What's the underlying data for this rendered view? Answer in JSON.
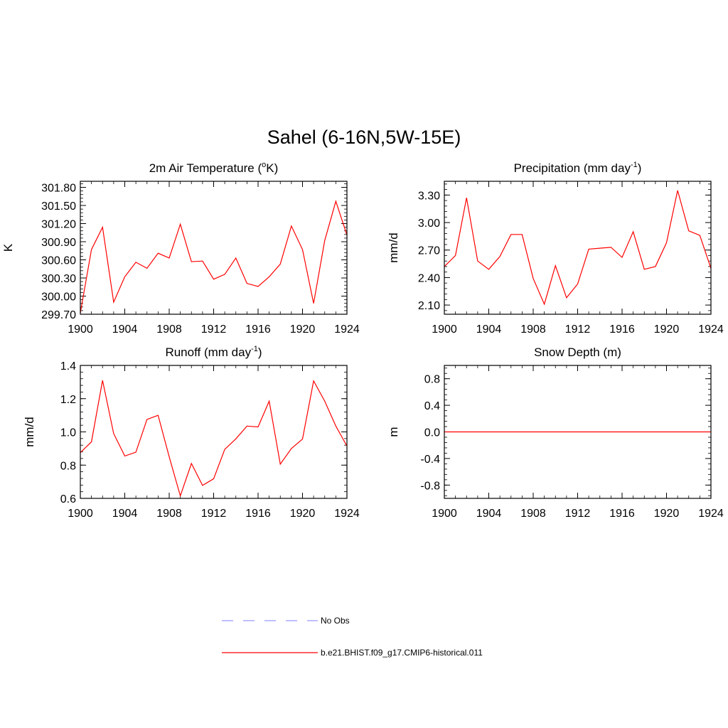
{
  "figure": {
    "title": "Sahel (6-16N,5W-15E)"
  },
  "legend": {
    "entries": [
      {
        "label": "No Obs",
        "color": "#9999ff",
        "dash": true
      },
      {
        "label": "b.e21.BHIST.f09_g17.CMIP6-historical.011",
        "color": "#ff0000",
        "dash": false
      }
    ]
  },
  "chart_data": [
    {
      "type": "line",
      "title": "2m Air Temperature (",
      "title_sup1": "o",
      "title_mid": "K)",
      "ylabel": "K",
      "xlim": [
        1900,
        1924
      ],
      "xticks": [
        1900,
        1904,
        1908,
        1912,
        1916,
        1920,
        1924
      ],
      "ylim": [
        299.7,
        301.9
      ],
      "yticks": [
        299.7,
        300.0,
        300.3,
        300.6,
        300.9,
        301.2,
        301.5,
        301.8
      ],
      "ytick_labels": [
        "299.70",
        "300.00",
        "300.30",
        "300.60",
        "300.90",
        "301.20",
        "301.50",
        "301.80"
      ],
      "series": [
        {
          "color": "#ff0000",
          "x": [
            1900,
            1901,
            1902,
            1903,
            1904,
            1905,
            1906,
            1907,
            1908,
            1909,
            1910,
            1911,
            1912,
            1913,
            1914,
            1915,
            1916,
            1917,
            1918,
            1919,
            1920,
            1921,
            1922,
            1923,
            1924
          ],
          "values": [
            299.72,
            300.77,
            301.14,
            299.9,
            300.32,
            300.56,
            300.46,
            300.71,
            300.63,
            301.19,
            300.57,
            300.58,
            300.28,
            300.36,
            300.63,
            300.21,
            300.16,
            300.32,
            300.53,
            301.16,
            300.77,
            299.88,
            300.92,
            301.57,
            301.01
          ]
        }
      ]
    },
    {
      "type": "line",
      "title": "Precipitation (mm day",
      "title_sup1": "-1",
      "title_mid": ")",
      "ylabel": "mm/d",
      "xlim": [
        1900,
        1924
      ],
      "xticks": [
        1900,
        1904,
        1908,
        1912,
        1916,
        1920,
        1924
      ],
      "ylim": [
        2.0,
        3.45
      ],
      "yticks": [
        2.1,
        2.4,
        2.7,
        3.0,
        3.3
      ],
      "ytick_labels": [
        "2.10",
        "2.40",
        "2.70",
        "3.00",
        "3.30"
      ],
      "series": [
        {
          "color": "#ff0000",
          "x": [
            1900,
            1901,
            1902,
            1903,
            1904,
            1905,
            1906,
            1907,
            1908,
            1909,
            1910,
            1911,
            1912,
            1913,
            1914,
            1915,
            1916,
            1917,
            1918,
            1919,
            1920,
            1921,
            1922,
            1923,
            1924
          ],
          "values": [
            2.52,
            2.64,
            3.27,
            2.58,
            2.49,
            2.63,
            2.87,
            2.87,
            2.39,
            2.11,
            2.53,
            2.18,
            2.33,
            2.71,
            2.72,
            2.73,
            2.62,
            2.9,
            2.49,
            2.52,
            2.78,
            3.35,
            2.91,
            2.86,
            2.5
          ]
        }
      ]
    },
    {
      "type": "line",
      "title": "Runoff (mm day",
      "title_sup1": "-1",
      "title_mid": ")",
      "ylabel": "mm/d",
      "xlim": [
        1900,
        1924
      ],
      "xticks": [
        1900,
        1904,
        1908,
        1912,
        1916,
        1920,
        1924
      ],
      "ylim": [
        0.6,
        1.4
      ],
      "yticks": [
        0.6,
        0.8,
        1.0,
        1.2,
        1.4
      ],
      "ytick_labels": [
        "0.6",
        "0.8",
        "1.0",
        "1.2",
        "1.4"
      ],
      "series": [
        {
          "color": "#ff0000",
          "x": [
            1900,
            1901,
            1902,
            1903,
            1904,
            1905,
            1906,
            1907,
            1908,
            1909,
            1910,
            1911,
            1912,
            1913,
            1914,
            1915,
            1916,
            1917,
            1918,
            1919,
            1920,
            1921,
            1922,
            1923,
            1924
          ],
          "values": [
            0.875,
            0.94,
            1.31,
            0.99,
            0.855,
            0.878,
            1.075,
            1.1,
            0.85,
            0.615,
            0.81,
            0.678,
            0.718,
            0.895,
            0.958,
            1.035,
            1.03,
            1.185,
            0.806,
            0.9,
            0.957,
            1.307,
            1.185,
            1.035,
            0.915
          ]
        }
      ]
    },
    {
      "type": "line",
      "title": "Snow Depth (m)",
      "title_sup1": "",
      "title_mid": "",
      "ylabel": "m",
      "xlim": [
        1900,
        1924
      ],
      "xticks": [
        1900,
        1904,
        1908,
        1912,
        1916,
        1920,
        1924
      ],
      "ylim": [
        -1.0,
        1.0
      ],
      "yticks": [
        -0.8,
        -0.4,
        0.0,
        0.4,
        0.8
      ],
      "ytick_labels": [
        "-0.8",
        "-0.4",
        "0.0",
        "0.4",
        "0.8"
      ],
      "series": [
        {
          "color": "#ff0000",
          "x": [
            1900,
            1901,
            1902,
            1903,
            1904,
            1905,
            1906,
            1907,
            1908,
            1909,
            1910,
            1911,
            1912,
            1913,
            1914,
            1915,
            1916,
            1917,
            1918,
            1919,
            1920,
            1921,
            1922,
            1923,
            1924
          ],
          "values": [
            0,
            0,
            0,
            0,
            0,
            0,
            0,
            0,
            0,
            0,
            0,
            0,
            0,
            0,
            0,
            0,
            0,
            0,
            0,
            0,
            0,
            0,
            0,
            0,
            0
          ]
        }
      ]
    }
  ]
}
